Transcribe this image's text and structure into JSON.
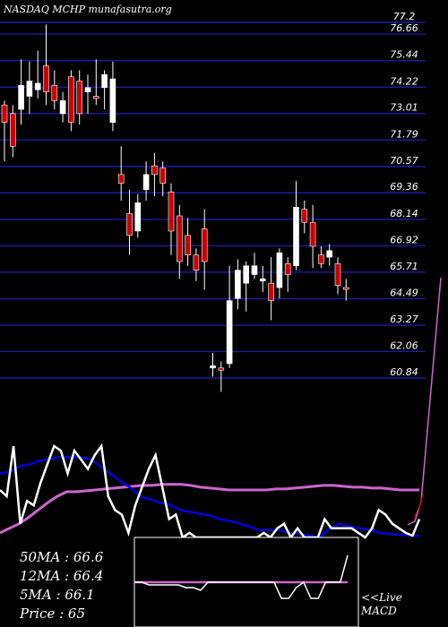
{
  "header": {
    "title": "NASDAQ MCHP munafasutra.org"
  },
  "chart_data": {
    "type": "candlestick",
    "title": "NASDAQ MCHP munafasutra.org",
    "ylim": [
      60.84,
      77.2
    ],
    "yticks": [
      "77.2",
      "76.66",
      "75.44",
      "74.22",
      "73.01",
      "71.79",
      "70.57",
      "69.36",
      "68.14",
      "66.92",
      "65.71",
      "64.49",
      "63.27",
      "62.06",
      "60.84"
    ],
    "candles": [
      {
        "o": 72.6,
        "h": 73.6,
        "l": 70.8,
        "c": 73.4,
        "color": "red"
      },
      {
        "o": 73.0,
        "h": 73.4,
        "l": 71.0,
        "c": 71.5,
        "color": "red"
      },
      {
        "o": 73.2,
        "h": 75.5,
        "l": 72.5,
        "c": 74.3,
        "color": "white"
      },
      {
        "o": 73.8,
        "h": 75.4,
        "l": 73.0,
        "c": 74.5,
        "color": "white"
      },
      {
        "o": 74.4,
        "h": 75.9,
        "l": 73.7,
        "c": 74.1,
        "color": "white"
      },
      {
        "o": 74.0,
        "h": 77.1,
        "l": 73.4,
        "c": 75.2,
        "color": "red"
      },
      {
        "o": 74.3,
        "h": 75.0,
        "l": 73.2,
        "c": 73.6,
        "color": "red"
      },
      {
        "o": 73.0,
        "h": 74.0,
        "l": 72.6,
        "c": 73.6,
        "color": "white"
      },
      {
        "o": 72.6,
        "h": 75.0,
        "l": 72.2,
        "c": 74.7,
        "color": "red"
      },
      {
        "o": 74.5,
        "h": 75.0,
        "l": 72.5,
        "c": 73.0,
        "color": "red"
      },
      {
        "o": 74.2,
        "h": 74.8,
        "l": 73.0,
        "c": 74.0,
        "color": "white"
      },
      {
        "o": 73.8,
        "h": 75.5,
        "l": 73.4,
        "c": 73.7,
        "color": "red"
      },
      {
        "o": 74.2,
        "h": 75.0,
        "l": 73.2,
        "c": 74.8,
        "color": "white"
      },
      {
        "o": 72.6,
        "h": 75.4,
        "l": 72.2,
        "c": 74.6,
        "color": "white"
      },
      {
        "o": 70.2,
        "h": 71.5,
        "l": 69.0,
        "c": 69.8,
        "color": "red"
      },
      {
        "o": 68.4,
        "h": 69.5,
        "l": 66.5,
        "c": 67.4,
        "color": "red"
      },
      {
        "o": 67.6,
        "h": 69.3,
        "l": 67.3,
        "c": 68.9,
        "color": "white"
      },
      {
        "o": 69.5,
        "h": 70.8,
        "l": 69.0,
        "c": 70.2,
        "color": "white"
      },
      {
        "o": 70.6,
        "h": 71.2,
        "l": 69.2,
        "c": 70.2,
        "color": "red"
      },
      {
        "o": 70.5,
        "h": 70.8,
        "l": 69.2,
        "c": 69.8,
        "color": "red"
      },
      {
        "o": 69.4,
        "h": 69.8,
        "l": 66.5,
        "c": 67.6,
        "color": "red"
      },
      {
        "o": 68.3,
        "h": 68.8,
        "l": 65.4,
        "c": 66.2,
        "color": "red"
      },
      {
        "o": 67.4,
        "h": 68.2,
        "l": 66.0,
        "c": 66.5,
        "color": "red"
      },
      {
        "o": 66.5,
        "h": 66.8,
        "l": 65.3,
        "c": 65.8,
        "color": "red"
      },
      {
        "o": 67.7,
        "h": 68.6,
        "l": 64.9,
        "c": 66.2,
        "color": "red"
      },
      {
        "o": 61.4,
        "h": 62.0,
        "l": 60.9,
        "c": 61.3,
        "color": "white"
      },
      {
        "o": 61.3,
        "h": 61.6,
        "l": 60.2,
        "c": 61.2,
        "color": "red"
      },
      {
        "o": 61.5,
        "h": 66.0,
        "l": 61.3,
        "c": 64.4,
        "color": "white"
      },
      {
        "o": 64.5,
        "h": 66.3,
        "l": 64.0,
        "c": 65.8,
        "color": "white"
      },
      {
        "o": 65.2,
        "h": 66.2,
        "l": 63.9,
        "c": 66.0,
        "color": "white"
      },
      {
        "o": 66.0,
        "h": 66.6,
        "l": 65.4,
        "c": 65.6,
        "color": "white"
      },
      {
        "o": 65.3,
        "h": 66.0,
        "l": 64.8,
        "c": 65.4,
        "color": "white"
      },
      {
        "o": 65.2,
        "h": 66.4,
        "l": 63.5,
        "c": 64.4,
        "color": "red"
      },
      {
        "o": 65.0,
        "h": 66.8,
        "l": 64.5,
        "c": 66.6,
        "color": "white"
      },
      {
        "o": 65.6,
        "h": 66.4,
        "l": 64.8,
        "c": 66.1,
        "color": "red"
      },
      {
        "o": 66.0,
        "h": 69.9,
        "l": 65.8,
        "c": 68.7,
        "color": "white"
      },
      {
        "o": 68.6,
        "h": 69.0,
        "l": 67.5,
        "c": 68.0,
        "color": "red"
      },
      {
        "o": 68.0,
        "h": 68.8,
        "l": 65.9,
        "c": 66.9,
        "color": "red"
      },
      {
        "o": 66.5,
        "h": 66.9,
        "l": 65.9,
        "c": 66.1,
        "color": "red"
      },
      {
        "o": 66.4,
        "h": 67.0,
        "l": 66.0,
        "c": 66.7,
        "color": "white"
      },
      {
        "o": 66.1,
        "h": 66.4,
        "l": 64.7,
        "c": 65.1,
        "color": "red"
      },
      {
        "o": 65.0,
        "h": 65.4,
        "l": 64.4,
        "c": 65.0,
        "color": "red"
      }
    ],
    "ma_panel": {
      "white": [
        0.48,
        0.55,
        0.0,
        0.85,
        0.6,
        0.65,
        0.4,
        0.2,
        0.0,
        0.05,
        0.3,
        0.05,
        0.15,
        0.25,
        0.1,
        0.0,
        0.55,
        0.7,
        0.75,
        0.95,
        0.65,
        0.45,
        0.25,
        0.1,
        0.45,
        0.8,
        0.75,
        1.0,
        0.95,
        1.0,
        1.0,
        1.0,
        1.0,
        1.0,
        1.0,
        1.0,
        1.0,
        1.0,
        1.0,
        0.95,
        1.0,
        0.9,
        0.85,
        1.0,
        0.9,
        1.0,
        1.0,
        1.0,
        0.8,
        0.9,
        0.9,
        0.9,
        0.9,
        0.95,
        1.0,
        0.9,
        0.7,
        0.75,
        0.85,
        0.9,
        0.95,
        0.98,
        0.8
      ],
      "blue": [
        0.3,
        0.28,
        0.22,
        0.2,
        0.16,
        0.14,
        0.12,
        0.12,
        0.12,
        0.14,
        0.22,
        0.3,
        0.38,
        0.45,
        0.55,
        0.58,
        0.62,
        0.64,
        0.7,
        0.72,
        0.74,
        0.76,
        0.8,
        0.82,
        0.85,
        0.88,
        0.92,
        0.92,
        0.92,
        0.95,
        0.96,
        0.98,
        1.0,
        0.9,
        0.85,
        0.88,
        0.9,
        0.92,
        0.95,
        0.96,
        0.97,
        0.98,
        0.98
      ],
      "pink": [
        0.95,
        0.9,
        0.85,
        0.78,
        0.7,
        0.62,
        0.55,
        0.5,
        0.5,
        0.49,
        0.48,
        0.47,
        0.46,
        0.45,
        0.44,
        0.43,
        0.43,
        0.42,
        0.42,
        0.42,
        0.43,
        0.45,
        0.46,
        0.47,
        0.48,
        0.48,
        0.48,
        0.48,
        0.48,
        0.47,
        0.47,
        0.46,
        0.45,
        0.44,
        0.43,
        0.43,
        0.44,
        0.45,
        0.45,
        0.46,
        0.46,
        0.47,
        0.48,
        0.48,
        0.48
      ]
    },
    "macd_panel": [
      0.5,
      0.5,
      0.55,
      0.55,
      0.55,
      0.55,
      0.55,
      0.6,
      0.6,
      0.65,
      0.5,
      0.5,
      0.5,
      0.5,
      0.5,
      0.5,
      0.5,
      0.5,
      0.5,
      0.5,
      0.8,
      0.8,
      0.6,
      0.5,
      0.8,
      0.8,
      0.5,
      0.5,
      0.5,
      0.0
    ]
  },
  "legend": {
    "ma50": "50MA : 66.6",
    "ma12": "12MA : 66.4",
    "ma5": "5MA : 66.1",
    "price": "Price   : 65"
  },
  "macd_label": {
    "live": "<<Live",
    "macd": "MACD"
  },
  "colors": {
    "grid": "#1a1aa6",
    "candle_red": "#cc0000",
    "candle_white": "#ffffff",
    "ma_blue": "#0000dd",
    "ma_pink": "#cc66cc"
  }
}
